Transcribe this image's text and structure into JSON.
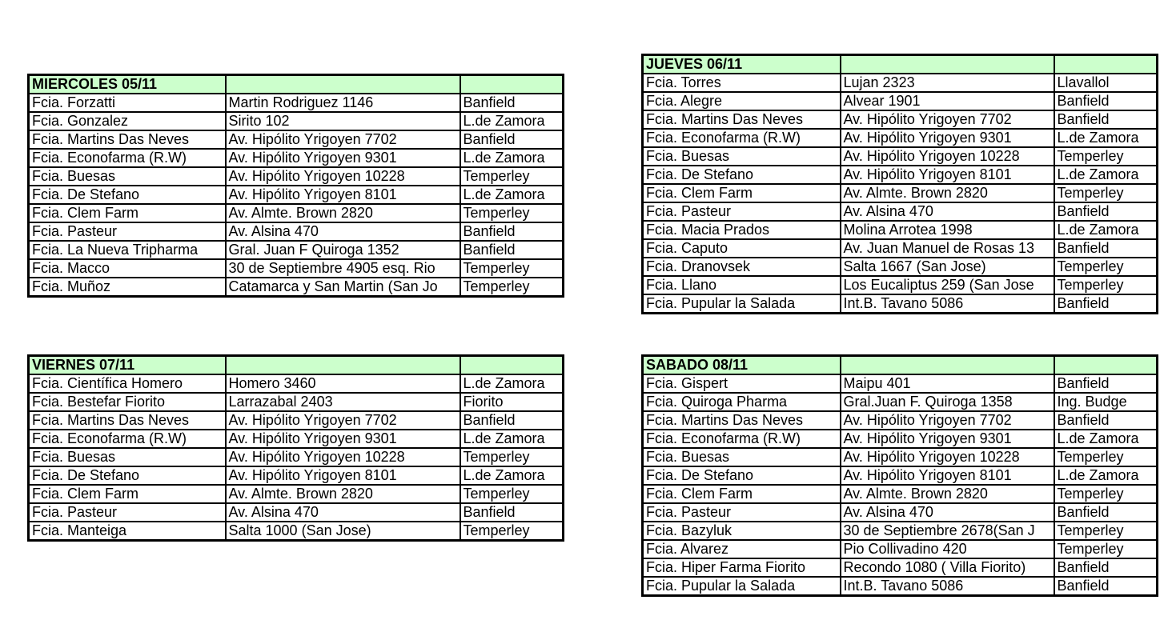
{
  "header_color": "#ccffcc",
  "tables": [
    {
      "title": "MIERCOLES 05/11",
      "rows": [
        [
          "Fcia. Forzatti",
          "Martin Rodriguez 1146",
          "Banfield"
        ],
        [
          "Fcia. Gonzalez",
          "Sirito 102",
          "L.de Zamora"
        ],
        [
          "Fcia. Martins Das Neves",
          "Av. Hipólito Yrigoyen 7702",
          "Banfield"
        ],
        [
          "Fcia. Econofarma (R.W)",
          "Av. Hipólito Yrigoyen 9301",
          "L.de Zamora"
        ],
        [
          "Fcia. Buesas",
          "Av. Hipólito Yrigoyen 10228",
          "Temperley"
        ],
        [
          "Fcia. De Stefano",
          "Av. Hipólito Yrigoyen 8101",
          "L.de Zamora"
        ],
        [
          "Fcia. Clem Farm",
          "Av. Almte. Brown 2820",
          "Temperley"
        ],
        [
          "Fcia. Pasteur",
          "Av. Alsina 470",
          "Banfield"
        ],
        [
          "Fcia. La Nueva Tripharma",
          "Gral. Juan F Quiroga  1352",
          "Banfield"
        ],
        [
          "Fcia. Macco",
          "30 de Septiembre 4905 esq. Rio",
          "Temperley"
        ],
        [
          "Fcia. Muñoz",
          "Catamarca y San Martin (San Jo",
          "Temperley"
        ]
      ]
    },
    {
      "title": "JUEVES 06/11",
      "rows": [
        [
          "Fcia. Torres",
          "Lujan 2323",
          "Llavallol"
        ],
        [
          "Fcia. Alegre",
          "Alvear  1901",
          "Banfield"
        ],
        [
          "Fcia. Martins Das Neves",
          "Av. Hipólito Yrigoyen 7702",
          "Banfield"
        ],
        [
          "Fcia. Econofarma (R.W)",
          "Av. Hipólito Yrigoyen 9301",
          "L.de Zamora"
        ],
        [
          "Fcia. Buesas",
          "Av. Hipólito Yrigoyen 10228",
          "Temperley"
        ],
        [
          "Fcia. De Stefano",
          "Av. Hipólito Yrigoyen 8101",
          "L.de Zamora"
        ],
        [
          "Fcia. Clem Farm",
          "Av. Almte. Brown 2820",
          "Temperley"
        ],
        [
          "Fcia. Pasteur",
          "Av. Alsina 470",
          "Banfield"
        ],
        [
          "Fcia. Macia Prados",
          "Molina Arrotea  1998",
          "L.de Zamora"
        ],
        [
          "Fcia. Caputo",
          "Av. Juan Manuel de Rosas 13",
          "Banfield"
        ],
        [
          "Fcia. Dranovsek",
          "Salta 1667 (San Jose)",
          "Temperley"
        ],
        [
          "Fcia. Llano",
          "Los Eucaliptus 259 (San Jose",
          "Temperley"
        ],
        [
          "Fcia. Pupular la Salada",
          "Int.B. Tavano 5086",
          "Banfield"
        ]
      ]
    },
    {
      "title": "VIERNES 07/11",
      "rows": [
        [
          "Fcia. Científica Homero",
          "Homero 3460",
          "L.de Zamora"
        ],
        [
          "Fcia. Bestefar Fiorito",
          "Larrazabal 2403",
          "Fiorito"
        ],
        [
          "Fcia. Martins Das Neves",
          "Av. Hipólito Yrigoyen 7702",
          "Banfield"
        ],
        [
          "Fcia. Econofarma (R.W)",
          "Av. Hipólito Yrigoyen 9301",
          "L.de Zamora"
        ],
        [
          "Fcia. Buesas",
          "Av. Hipólito Yrigoyen 10228",
          "Temperley"
        ],
        [
          "Fcia. De Stefano",
          "Av. Hipólito Yrigoyen 8101",
          "L.de Zamora"
        ],
        [
          "Fcia. Clem Farm",
          "Av. Almte. Brown 2820",
          "Temperley"
        ],
        [
          "Fcia. Pasteur",
          "Av. Alsina 470",
          "Banfield"
        ],
        [
          "Fcia. Manteiga",
          "Salta 1000 (San Jose)",
          "Temperley"
        ]
      ]
    },
    {
      "title": "SABADO 08/11",
      "rows": [
        [
          "Fcia. Gispert",
          "Maipu 401",
          "Banfield"
        ],
        [
          "Fcia. Quiroga Pharma",
          "Gral.Juan F. Quiroga 1358",
          "Ing. Budge"
        ],
        [
          "Fcia. Martins Das Neves",
          "Av. Hipólito Yrigoyen 7702",
          "Banfield"
        ],
        [
          "Fcia. Econofarma (R.W)",
          "Av. Hipólito Yrigoyen 9301",
          "L.de Zamora"
        ],
        [
          "Fcia. Buesas",
          "Av. Hipólito Yrigoyen 10228",
          "Temperley"
        ],
        [
          "Fcia. De Stefano",
          "Av. Hipólito Yrigoyen 8101",
          "L.de Zamora"
        ],
        [
          "Fcia. Clem Farm",
          "Av. Almte. Brown 2820",
          "Temperley"
        ],
        [
          "Fcia. Pasteur",
          "Av. Alsina 470",
          "Banfield"
        ],
        [
          "Fcia. Bazyluk",
          "30 de Septiembre 2678(San J",
          "Temperley"
        ],
        [
          "Fcia. Alvarez",
          "Pio Collivadino 420",
          "Temperley"
        ],
        [
          "Fcia. Hiper Farma Fiorito",
          "Recondo 1080 ( Villa Fiorito)",
          "Banfield"
        ],
        [
          "Fcia. Pupular la Salada",
          "Int.B. Tavano 5086",
          "Banfield"
        ]
      ]
    }
  ]
}
